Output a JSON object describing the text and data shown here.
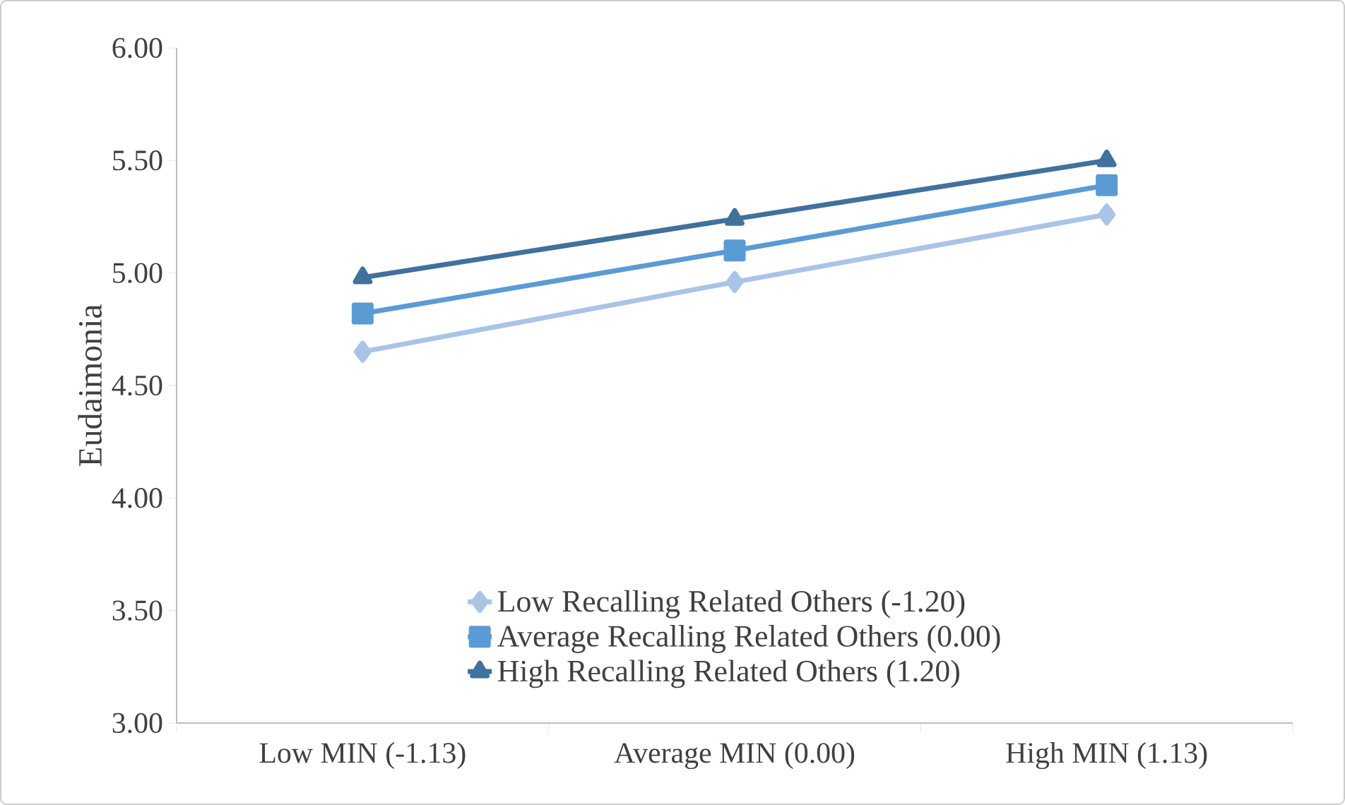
{
  "chart_data": {
    "type": "line",
    "ylabel": "Eudaimonia",
    "categories": [
      "Low MIN (-1.13)",
      "Average MIN (0.00)",
      "High MIN (1.13)"
    ],
    "series": [
      {
        "name": "Low Recalling Related Others (-1.20)",
        "color": "#a9c4e6",
        "marker": "diamond",
        "values": [
          4.65,
          4.96,
          5.26
        ]
      },
      {
        "name": "Average Recalling Related Others (0.00)",
        "color": "#5b9bd5",
        "marker": "square",
        "values": [
          4.82,
          5.1,
          5.39
        ]
      },
      {
        "name": "High Recalling Related Others (1.20)",
        "color": "#41719c",
        "marker": "triangle",
        "values": [
          4.98,
          5.24,
          5.5
        ]
      }
    ],
    "ylim": [
      3,
      6
    ],
    "yticks": [
      {
        "value": 3,
        "label": "3.00"
      },
      {
        "value": 3.5,
        "label": "3.50"
      },
      {
        "value": 4,
        "label": "4.00"
      },
      {
        "value": 4.5,
        "label": "4.50"
      },
      {
        "value": 5,
        "label": "5.00"
      },
      {
        "value": 5.5,
        "label": "5.50"
      },
      {
        "value": 6,
        "label": "6.00"
      }
    ],
    "legend": "bottom",
    "grid": false,
    "line_style": "solid"
  }
}
